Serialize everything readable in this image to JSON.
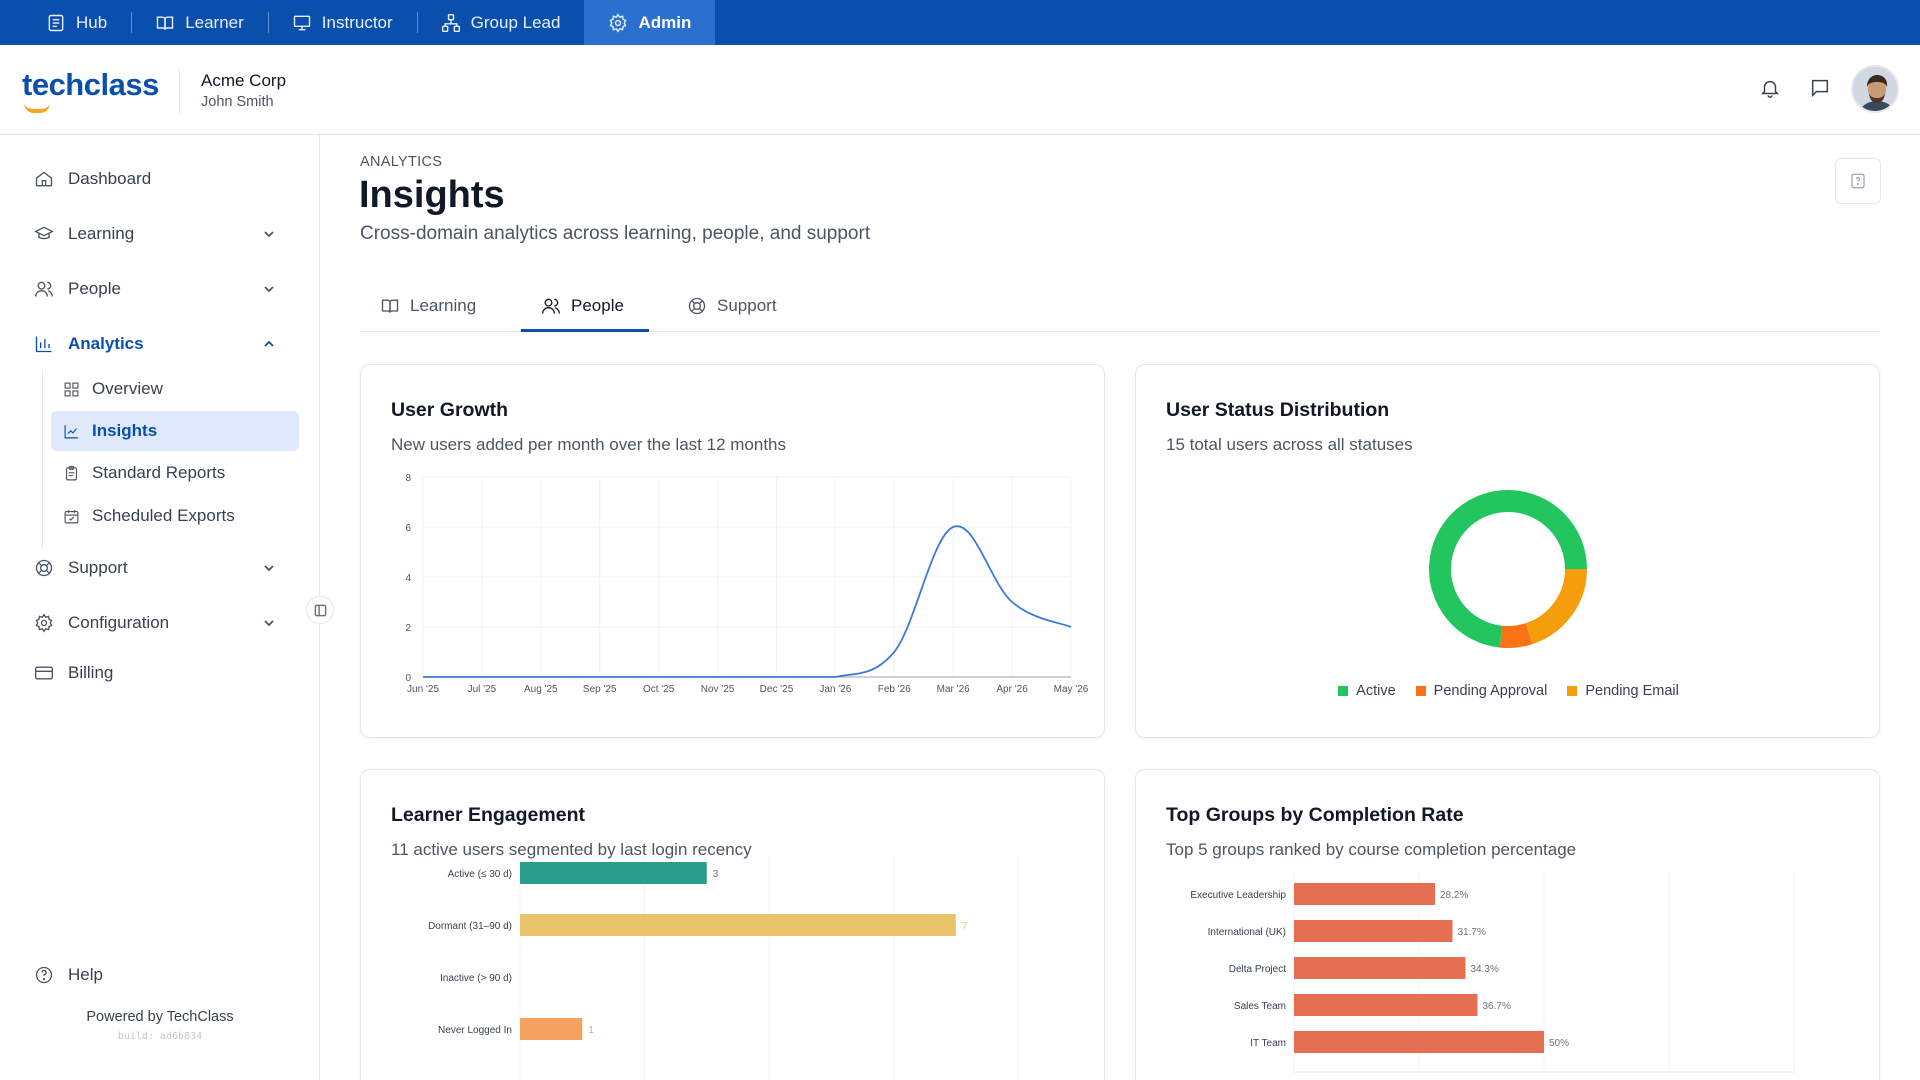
{
  "roles": [
    {
      "label": "Hub",
      "icon": "hub-icon"
    },
    {
      "label": "Learner",
      "icon": "book-icon"
    },
    {
      "label": "Instructor",
      "icon": "presentation-icon"
    },
    {
      "label": "Group Lead",
      "icon": "group-icon"
    },
    {
      "label": "Admin",
      "icon": "gear-icon",
      "active": true
    }
  ],
  "header": {
    "logo_text": "techclass",
    "org_name": "Acme Corp",
    "user_name": "John Smith"
  },
  "sidebar": {
    "items": [
      {
        "label": "Dashboard"
      },
      {
        "label": "Learning"
      },
      {
        "label": "People"
      },
      {
        "label": "Analytics"
      },
      {
        "label": "Support"
      },
      {
        "label": "Configuration"
      },
      {
        "label": "Billing"
      }
    ],
    "analytics_sub": [
      {
        "label": "Overview"
      },
      {
        "label": "Insights",
        "active": true
      },
      {
        "label": "Standard Reports"
      },
      {
        "label": "Scheduled Exports"
      }
    ],
    "help_label": "Help",
    "powered_by": "Powered by TechClass",
    "build": "build: ad6b834"
  },
  "page": {
    "eyebrow": "ANALYTICS",
    "title": "Insights",
    "subtitle": "Cross-domain analytics across learning, people, and support"
  },
  "tabs": [
    {
      "label": "Learning"
    },
    {
      "label": "People",
      "active": true
    },
    {
      "label": "Support"
    }
  ],
  "cards": {
    "user_growth": {
      "title": "User Growth",
      "subtitle": "New users added per month over the last 12 months"
    },
    "status": {
      "title": "User Status Distribution",
      "subtitle": "15 total users across all statuses"
    },
    "engagement": {
      "title": "Learner Engagement",
      "subtitle": "11 active users segmented by last login recency"
    },
    "groups": {
      "title": "Top Groups by Completion Rate",
      "subtitle": "Top 5 groups ranked by course completion percentage"
    }
  },
  "colors": {
    "brand": "#0b4fad",
    "line": "#3b7bd8",
    "active": "#22c55e",
    "pending_approval": "#f97316",
    "pending_email": "#f59e0b",
    "teal": "#2a9d8f",
    "yellow": "#e9c46a",
    "orange": "#f4a261",
    "coral": "#e76f51"
  },
  "chart_data": [
    {
      "type": "line",
      "title": "User Growth",
      "x": [
        "Jun '25",
        "Jul '25",
        "Aug '25",
        "Sep '25",
        "Oct '25",
        "Nov '25",
        "Dec '25",
        "Jan '26",
        "Feb '26",
        "Mar '26",
        "Apr '26",
        "May '26"
      ],
      "values": [
        0,
        0,
        0,
        0,
        0,
        0,
        0,
        0,
        1,
        6,
        3,
        2
      ],
      "ylim": [
        0,
        8
      ],
      "yticks": [
        0,
        2,
        4,
        6,
        8
      ],
      "grid": true
    },
    {
      "type": "pie",
      "title": "User Status Distribution",
      "labels": [
        "Active",
        "Pending Approval",
        "Pending Email"
      ],
      "values": [
        11,
        1,
        3
      ],
      "donut": true,
      "legend": "bottom"
    },
    {
      "type": "bar",
      "orientation": "horizontal",
      "title": "Learner Engagement",
      "categories": [
        "Active (≤ 30 d)",
        "Dormant (31–90 d)",
        "Inactive (> 90 d)",
        "Never Logged In"
      ],
      "values": [
        3,
        7,
        0,
        1
      ],
      "data_labels": [
        "3",
        "7",
        "",
        "1"
      ]
    },
    {
      "type": "bar",
      "orientation": "horizontal",
      "title": "Top Groups by Completion Rate",
      "categories": [
        "Executive Leadership",
        "International (UK)",
        "Delta Project",
        "Sales Team",
        "IT Team"
      ],
      "values": [
        28.2,
        31.7,
        34.3,
        36.7,
        50
      ],
      "data_labels": [
        "28.2%",
        "31.7%",
        "34.3%",
        "36.7%",
        "50%"
      ],
      "xticks": [
        "0%",
        "25%",
        "50%",
        "75%",
        "100%"
      ],
      "xlim": [
        0,
        100
      ]
    }
  ]
}
